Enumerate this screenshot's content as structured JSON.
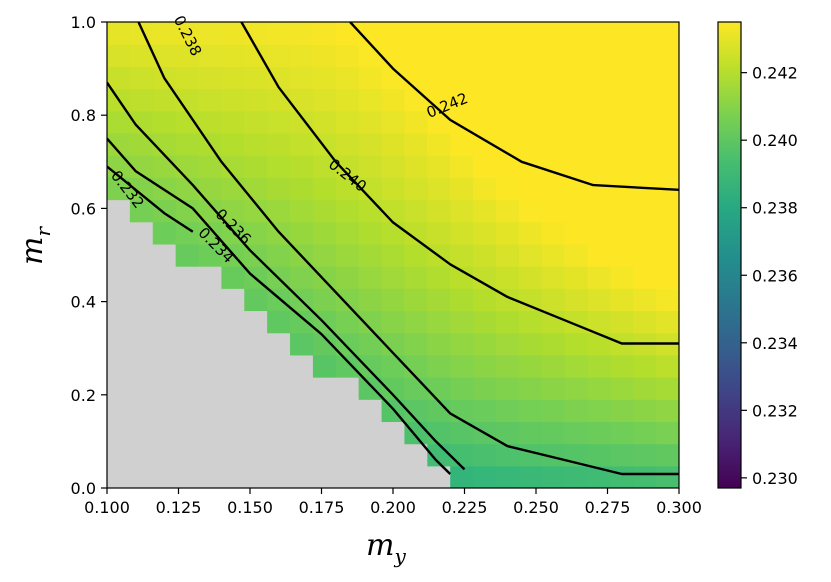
{
  "chart_data": {
    "type": "heatmap",
    "title": "",
    "xlabel": "m",
    "xlabel_sub": "y",
    "ylabel": "m",
    "ylabel_sub": "r",
    "xlim": [
      0.1,
      0.3
    ],
    "ylim": [
      0.0,
      1.0
    ],
    "x_ticks": [
      0.1,
      0.125,
      0.15,
      0.175,
      0.2,
      0.225,
      0.25,
      0.275,
      0.3
    ],
    "x_tick_labels": [
      "0.100",
      "0.125",
      "0.150",
      "0.175",
      "0.200",
      "0.225",
      "0.250",
      "0.275",
      "0.300"
    ],
    "y_ticks": [
      0.0,
      0.2,
      0.4,
      0.6,
      0.8,
      1.0
    ],
    "y_tick_labels": [
      "0.0",
      "0.2",
      "0.4",
      "0.6",
      "0.8",
      "1.0"
    ],
    "colormap": "viridis",
    "value_range": [
      0.2297,
      0.2435
    ],
    "colorbar_ticks": [
      0.23,
      0.232,
      0.234,
      0.236,
      0.238,
      0.24,
      0.242
    ],
    "colorbar_tick_labels": [
      "0.230",
      "0.232",
      "0.234",
      "0.236",
      "0.238",
      "0.240",
      "0.242"
    ],
    "grid": false,
    "invalid_region_color": "#d0d0d0",
    "invalid_region": {
      "description_boundary_points": [
        [
          0.1,
          0.64
        ],
        [
          0.228,
          0.0
        ]
      ]
    },
    "contour_levels": [
      0.232,
      0.234,
      0.236,
      0.238,
      0.24,
      0.242
    ],
    "contour_labels": [
      {
        "text": "0.232",
        "x": 0.107,
        "y": 0.64,
        "angle": 52
      },
      {
        "text": "0.234",
        "x": 0.138,
        "y": 0.52,
        "angle": 45
      },
      {
        "text": "0.236",
        "x": 0.144,
        "y": 0.56,
        "angle": 45
      },
      {
        "text": "0.238",
        "x": 0.128,
        "y": 0.97,
        "angle": 63
      },
      {
        "text": "0.240",
        "x": 0.184,
        "y": 0.67,
        "angle": 38
      },
      {
        "text": "0.242",
        "x": 0.219,
        "y": 0.82,
        "angle": -22
      }
    ],
    "contours": [
      {
        "level": 0.232,
        "points": [
          [
            0.1,
            0.69
          ],
          [
            0.11,
            0.64
          ],
          [
            0.12,
            0.59
          ],
          [
            0.13,
            0.55
          ]
        ]
      },
      {
        "level": 0.234,
        "points": [
          [
            0.1,
            0.75
          ],
          [
            0.11,
            0.68
          ],
          [
            0.13,
            0.6
          ],
          [
            0.15,
            0.46
          ],
          [
            0.175,
            0.33
          ],
          [
            0.2,
            0.17
          ],
          [
            0.215,
            0.06
          ],
          [
            0.22,
            0.03
          ]
        ]
      },
      {
        "level": 0.236,
        "points": [
          [
            0.1,
            0.87
          ],
          [
            0.11,
            0.78
          ],
          [
            0.13,
            0.65
          ],
          [
            0.15,
            0.51
          ],
          [
            0.175,
            0.36
          ],
          [
            0.2,
            0.2
          ],
          [
            0.215,
            0.1
          ],
          [
            0.225,
            0.04
          ]
        ]
      },
      {
        "level": 0.238,
        "points": [
          [
            0.111,
            1.0
          ],
          [
            0.12,
            0.88
          ],
          [
            0.14,
            0.7
          ],
          [
            0.16,
            0.55
          ],
          [
            0.18,
            0.42
          ],
          [
            0.2,
            0.29
          ],
          [
            0.22,
            0.16
          ],
          [
            0.24,
            0.09
          ],
          [
            0.26,
            0.06
          ],
          [
            0.28,
            0.03
          ],
          [
            0.3,
            0.03
          ]
        ]
      },
      {
        "level": 0.24,
        "points": [
          [
            0.147,
            1.0
          ],
          [
            0.16,
            0.86
          ],
          [
            0.18,
            0.7
          ],
          [
            0.2,
            0.57
          ],
          [
            0.22,
            0.48
          ],
          [
            0.24,
            0.41
          ],
          [
            0.26,
            0.36
          ],
          [
            0.28,
            0.31
          ],
          [
            0.3,
            0.31
          ]
        ]
      },
      {
        "level": 0.242,
        "points": [
          [
            0.185,
            1.0
          ],
          [
            0.2,
            0.9
          ],
          [
            0.22,
            0.79
          ],
          [
            0.245,
            0.7
          ],
          [
            0.27,
            0.65
          ],
          [
            0.3,
            0.64
          ]
        ]
      }
    ]
  }
}
